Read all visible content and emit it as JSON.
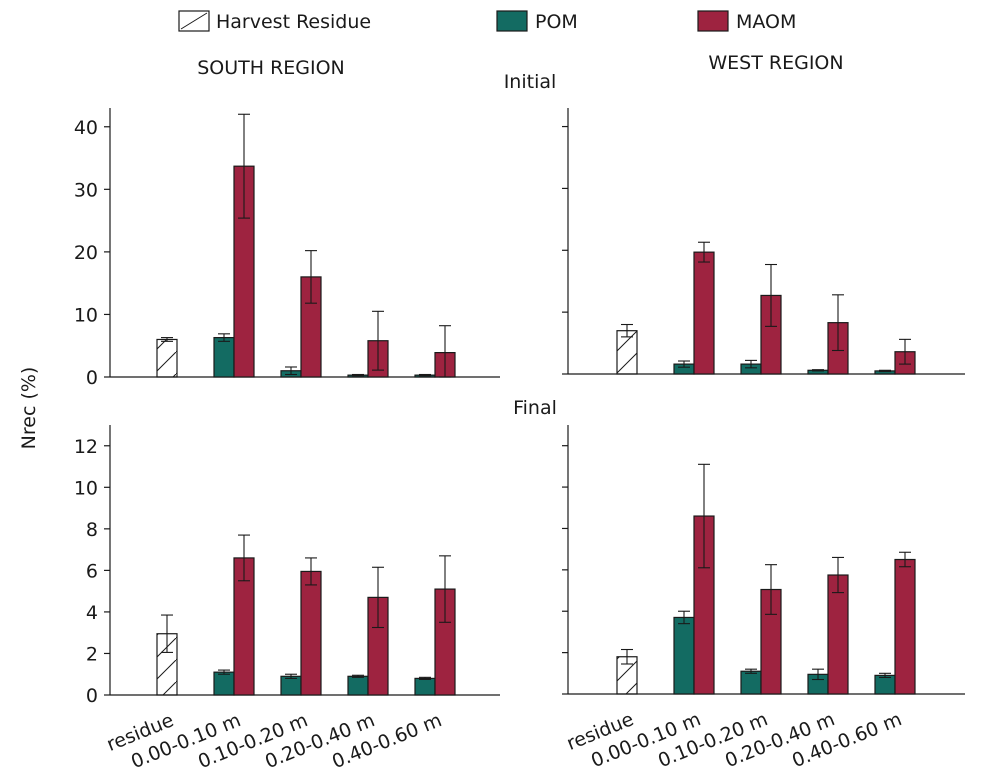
{
  "legend": {
    "items": [
      {
        "label": "Harvest Residue",
        "key": "residue",
        "color": "#ffffff",
        "hatch": true
      },
      {
        "label": "POM",
        "key": "pom",
        "color": "#136b62",
        "hatch": false
      },
      {
        "label": "MAOM",
        "key": "maom",
        "color": "#9e2340",
        "hatch": false
      }
    ]
  },
  "region_titles": {
    "south": "SOUTH REGION",
    "west": "WEST REGION"
  },
  "row_titles": {
    "initial": "Initial",
    "final": "Final"
  },
  "ylabel": "Nrec (%)",
  "chart_data": [
    {
      "type": "bar",
      "panel": "south-initial",
      "categories": [
        "residue",
        "0.00-0.10 m",
        "0.10-0.20 m",
        "0.20-0.40 m",
        "0.40-0.60 m"
      ],
      "ylim": [
        0,
        43
      ],
      "yticks": [
        0,
        10,
        20,
        30,
        40
      ],
      "series": [
        {
          "name": "Harvest Residue",
          "values": [
            6.0,
            null,
            null,
            null,
            null
          ],
          "errors": [
            0.3,
            null,
            null,
            null,
            null
          ]
        },
        {
          "name": "POM",
          "values": [
            null,
            6.3,
            1.0,
            0.3,
            0.3
          ],
          "errors": [
            null,
            0.6,
            0.6,
            0.1,
            0.1
          ]
        },
        {
          "name": "MAOM",
          "values": [
            null,
            33.7,
            16.0,
            5.8,
            3.9
          ],
          "errors": [
            null,
            8.3,
            4.2,
            4.7,
            4.3
          ]
        }
      ]
    },
    {
      "type": "bar",
      "panel": "west-initial",
      "categories": [
        "residue",
        "0.00-0.10 m",
        "0.10-0.20 m",
        "0.20-0.40 m",
        "0.40-0.60 m"
      ],
      "ylim": [
        0,
        43
      ],
      "yticks": [
        0,
        10,
        20,
        30,
        40
      ],
      "series": [
        {
          "name": "Harvest Residue",
          "values": [
            7.0,
            null,
            null,
            null,
            null
          ],
          "errors": [
            1.0,
            null,
            null,
            null,
            null
          ]
        },
        {
          "name": "POM",
          "values": [
            null,
            1.6,
            1.6,
            0.6,
            0.5
          ],
          "errors": [
            null,
            0.5,
            0.6,
            0.1,
            0.1
          ]
        },
        {
          "name": "MAOM",
          "values": [
            null,
            19.7,
            12.7,
            8.3,
            3.6
          ],
          "errors": [
            null,
            1.6,
            5.0,
            4.5,
            2.0
          ]
        }
      ]
    },
    {
      "type": "bar",
      "panel": "south-final",
      "categories": [
        "residue",
        "0.00-0.10 m",
        "0.10-0.20 m",
        "0.20-0.40 m",
        "0.40-0.60 m"
      ],
      "ylim": [
        0,
        13
      ],
      "yticks": [
        0,
        2,
        4,
        6,
        8,
        10,
        12
      ],
      "series": [
        {
          "name": "Harvest Residue",
          "values": [
            2.95,
            null,
            null,
            null,
            null
          ],
          "errors": [
            0.9,
            null,
            null,
            null,
            null
          ]
        },
        {
          "name": "POM",
          "values": [
            null,
            1.1,
            0.9,
            0.9,
            0.8
          ],
          "errors": [
            null,
            0.1,
            0.1,
            0.05,
            0.05
          ]
        },
        {
          "name": "MAOM",
          "values": [
            null,
            6.6,
            5.95,
            4.7,
            5.1
          ],
          "errors": [
            null,
            1.1,
            0.65,
            1.45,
            1.6
          ]
        }
      ]
    },
    {
      "type": "bar",
      "panel": "west-final",
      "categories": [
        "residue",
        "0.00-0.10 m",
        "0.10-0.20 m",
        "0.20-0.40 m",
        "0.40-0.60 m"
      ],
      "ylim": [
        0,
        13
      ],
      "yticks": [
        0,
        2,
        4,
        6,
        8,
        10,
        12
      ],
      "series": [
        {
          "name": "Harvest Residue",
          "values": [
            1.8,
            null,
            null,
            null,
            null
          ],
          "errors": [
            0.35,
            null,
            null,
            null,
            null
          ]
        },
        {
          "name": "POM",
          "values": [
            null,
            3.7,
            1.1,
            0.95,
            0.9
          ],
          "errors": [
            null,
            0.3,
            0.1,
            0.25,
            0.1
          ]
        },
        {
          "name": "MAOM",
          "values": [
            null,
            8.6,
            5.05,
            5.75,
            6.5
          ],
          "errors": [
            null,
            2.5,
            1.2,
            0.85,
            0.35
          ]
        }
      ]
    }
  ]
}
